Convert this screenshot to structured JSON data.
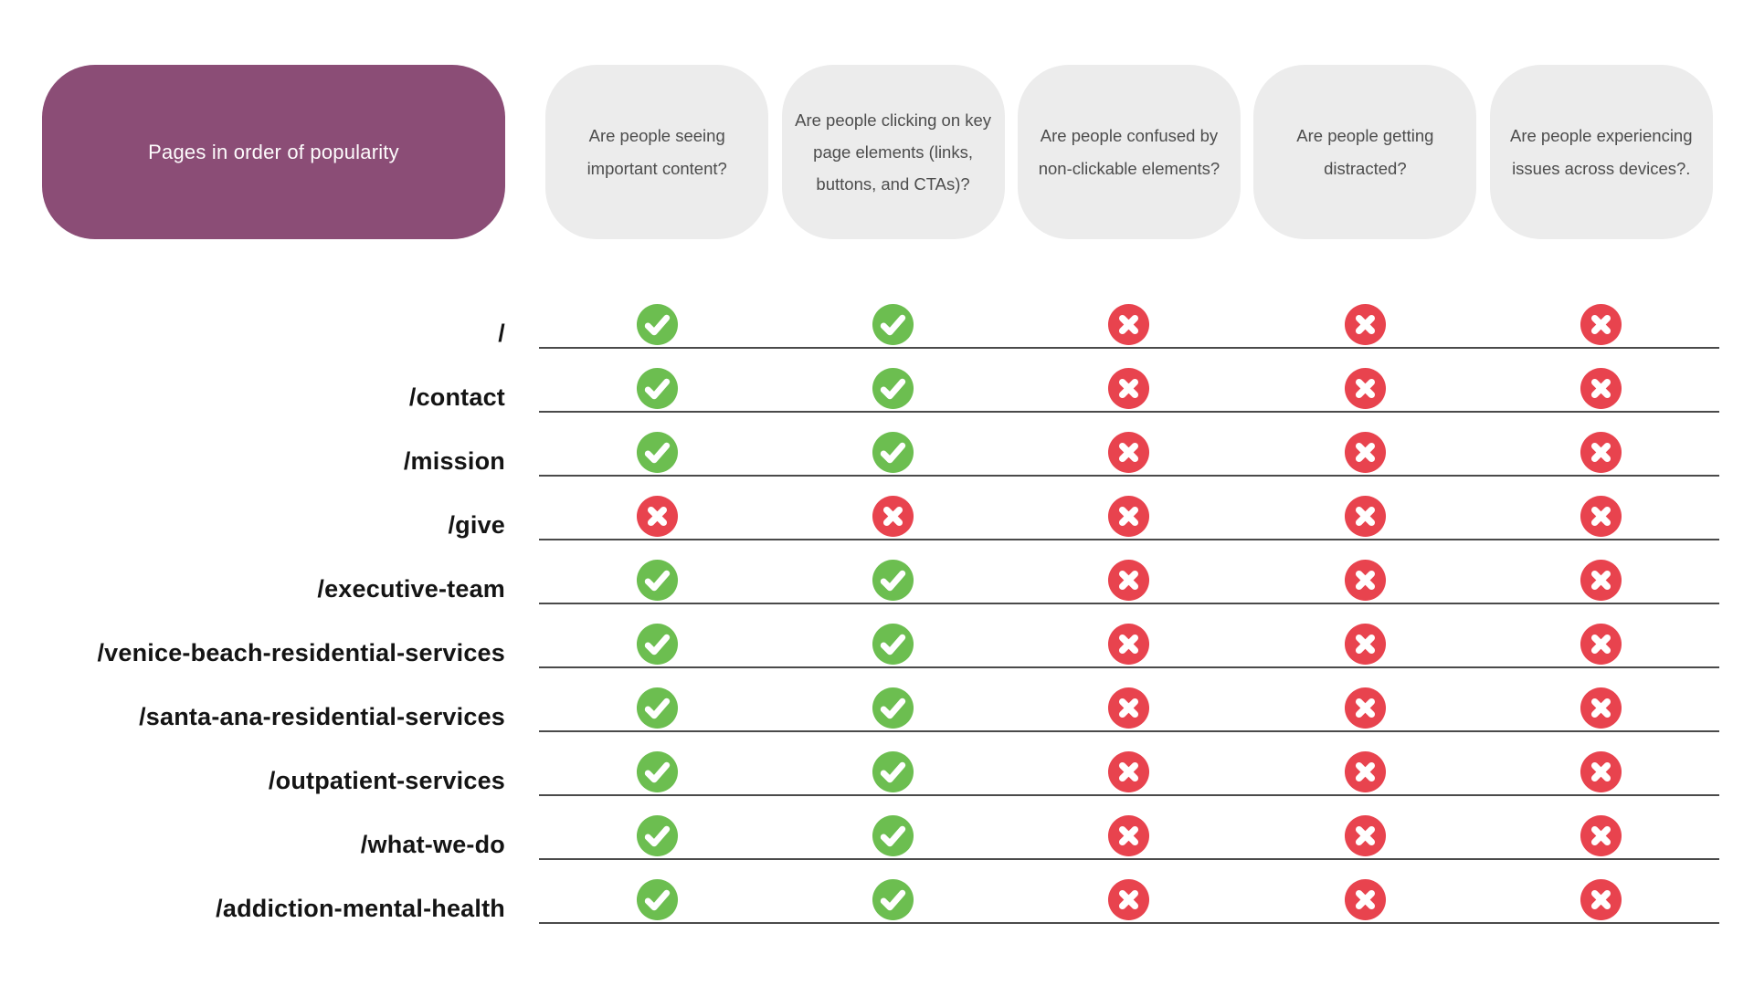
{
  "colors": {
    "purple": "#8B4D76",
    "header_gray": "#ECECEC",
    "green": "#6CBE50",
    "red": "#E8434E",
    "line": "#4a4a4a"
  },
  "table": {
    "corner_label": "Pages in order of popularity",
    "columns": [
      {
        "label": "Are people seeing important content?"
      },
      {
        "label": "Are people clicking on key page elements (links, buttons, and CTAs)?"
      },
      {
        "label": "Are people confused by non-clickable elements?"
      },
      {
        "label": "Are people getting distracted?"
      },
      {
        "label": "Are people experiencing issues across devices?."
      }
    ],
    "rows": [
      {
        "page": "/",
        "values": [
          "yes",
          "yes",
          "no",
          "no",
          "no"
        ]
      },
      {
        "page": "/contact",
        "values": [
          "yes",
          "yes",
          "no",
          "no",
          "no"
        ]
      },
      {
        "page": "/mission",
        "values": [
          "yes",
          "yes",
          "no",
          "no",
          "no"
        ]
      },
      {
        "page": "/give",
        "values": [
          "no",
          "no",
          "no",
          "no",
          "no"
        ]
      },
      {
        "page": "/executive-team",
        "values": [
          "yes",
          "yes",
          "no",
          "no",
          "no"
        ]
      },
      {
        "page": "/venice-beach-residential-services",
        "values": [
          "yes",
          "yes",
          "no",
          "no",
          "no"
        ]
      },
      {
        "page": "/santa-ana-residential-services",
        "values": [
          "yes",
          "yes",
          "no",
          "no",
          "no"
        ]
      },
      {
        "page": "/outpatient-services",
        "values": [
          "yes",
          "yes",
          "no",
          "no",
          "no"
        ]
      },
      {
        "page": "/what-we-do",
        "values": [
          "yes",
          "yes",
          "no",
          "no",
          "no"
        ]
      },
      {
        "page": "/addiction-mental-health",
        "values": [
          "yes",
          "yes",
          "no",
          "no",
          "no"
        ]
      }
    ]
  },
  "icons": {
    "yes": "check-circle-icon",
    "no": "x-circle-icon"
  }
}
